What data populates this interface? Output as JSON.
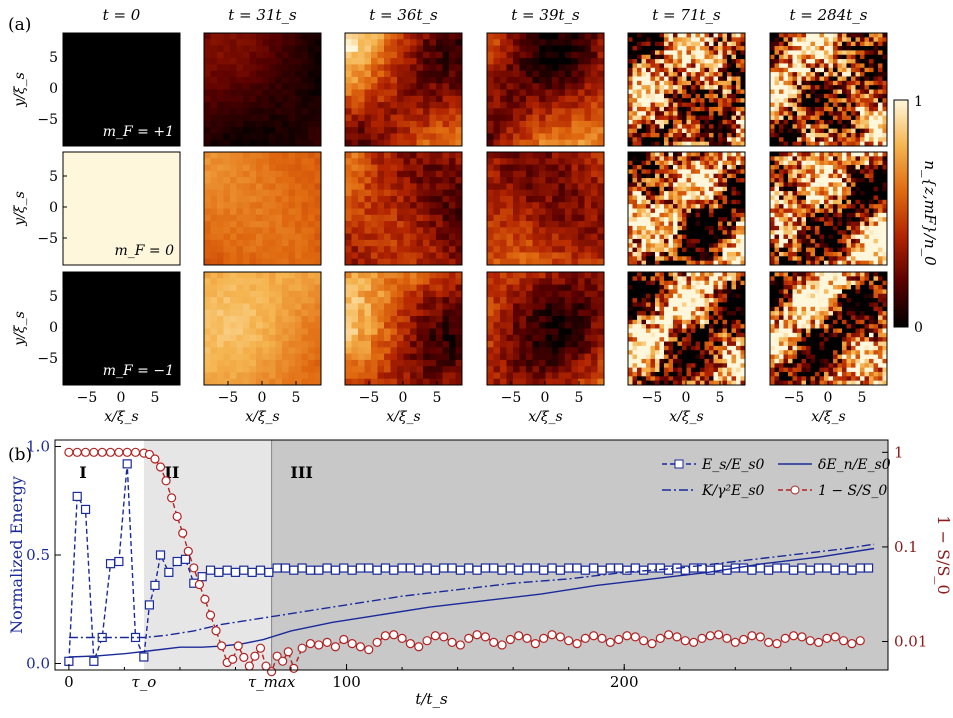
{
  "panel_a": {
    "label": "(a)",
    "column_titles": [
      "t = 0",
      "t = 31t_s",
      "t = 36t_s",
      "t = 39t_s",
      "t = 71t_s",
      "t = 284t_s"
    ],
    "row_labels": [
      "m_F = +1",
      "m_F = 0",
      "m_F = −1"
    ],
    "ylabel": "y/ξ_s",
    "xlabel": "x/ξ_s",
    "x_ticks": [
      "−5",
      "0",
      "5"
    ],
    "y_ticks": [
      "5",
      "0",
      "−5"
    ],
    "colorbar": {
      "label": "n_{z,mF}/n_0",
      "min_label": "0",
      "max_label": "1",
      "colors": [
        "#000000",
        "#5a0000",
        "#b32400",
        "#e06a10",
        "#f5b550",
        "#fff7dc"
      ]
    },
    "panels": [
      [
        0.0,
        0.12,
        0.55,
        0.5,
        0.5,
        0.5
      ],
      [
        1.0,
        0.6,
        0.45,
        0.5,
        0.5,
        0.5
      ],
      [
        0.0,
        0.72,
        0.58,
        0.5,
        0.5,
        0.5
      ]
    ]
  },
  "chart_data": {
    "type": "line",
    "label": "(b)",
    "xlabel": "t/t_s",
    "ylabel": "Normalized Energy",
    "ylabel_right": "1 − S/S_0",
    "xlim": [
      -5,
      295
    ],
    "ylim": [
      -0.03,
      1.03
    ],
    "x_ticks": [
      "0",
      "100",
      "200"
    ],
    "x_tick_values": [
      0,
      100,
      200
    ],
    "special_ticks": [
      {
        "label": "τ_o",
        "x": 27
      },
      {
        "label": "τ_max",
        "x": 73
      }
    ],
    "y_ticks": [
      "0.0",
      "0.5",
      "1.0"
    ],
    "y_tick_values": [
      0.0,
      0.5,
      1.0
    ],
    "y2_scale": "log",
    "y2_ticks": [
      "0.01",
      "0.1",
      "1"
    ],
    "y2_tick_values": [
      0.01,
      0.1,
      1
    ],
    "regions": [
      {
        "label": "I",
        "from": -5,
        "to": 27,
        "color": "#ffffff"
      },
      {
        "label": "II",
        "from": 27,
        "to": 73,
        "color": "#e6e6e6"
      },
      {
        "label": "III",
        "from": 73,
        "to": 295,
        "color": "#c8c8c8"
      }
    ],
    "series": [
      {
        "name": "E_s/E_s0",
        "axis": "left",
        "style": "dashed-square",
        "color": "#1a2a9a",
        "x": [
          0,
          3,
          6,
          9,
          12,
          15,
          18,
          21,
          24,
          27,
          29,
          31,
          33,
          36,
          39,
          42,
          45,
          48,
          51,
          54,
          57,
          60,
          63,
          66,
          69,
          72,
          75,
          78,
          81,
          84,
          87,
          90,
          93,
          96,
          99,
          102,
          105,
          108,
          111,
          114,
          117,
          120,
          123,
          126,
          129,
          132,
          135,
          138,
          141,
          144,
          147,
          150,
          153,
          156,
          159,
          162,
          165,
          168,
          171,
          174,
          177,
          180,
          183,
          186,
          189,
          192,
          195,
          198,
          201,
          204,
          207,
          210,
          213,
          216,
          219,
          222,
          225,
          228,
          231,
          234,
          237,
          240,
          243,
          246,
          249,
          252,
          255,
          258,
          261,
          264,
          267,
          270,
          273,
          276,
          279,
          282,
          285,
          288
        ],
        "y": [
          0.01,
          0.77,
          0.71,
          0.01,
          0.12,
          0.46,
          0.47,
          0.92,
          0.12,
          0.03,
          0.27,
          0.36,
          0.5,
          0.42,
          0.47,
          0.48,
          0.37,
          0.4,
          0.43,
          0.42,
          0.43,
          0.42,
          0.43,
          0.42,
          0.43,
          0.42,
          0.44,
          0.44,
          0.43,
          0.44,
          0.43,
          0.43,
          0.44,
          0.43,
          0.44,
          0.43,
          0.44,
          0.44,
          0.43,
          0.44,
          0.43,
          0.44,
          0.44,
          0.43,
          0.44,
          0.43,
          0.44,
          0.44,
          0.43,
          0.44,
          0.43,
          0.44,
          0.44,
          0.43,
          0.44,
          0.43,
          0.44,
          0.44,
          0.43,
          0.44,
          0.43,
          0.44,
          0.44,
          0.43,
          0.44,
          0.43,
          0.44,
          0.44,
          0.43,
          0.44,
          0.43,
          0.44,
          0.44,
          0.43,
          0.44,
          0.43,
          0.44,
          0.44,
          0.43,
          0.44,
          0.43,
          0.44,
          0.44,
          0.43,
          0.44,
          0.43,
          0.44,
          0.44,
          0.43,
          0.44,
          0.43,
          0.44,
          0.44,
          0.43,
          0.44,
          0.43,
          0.44,
          0.44
        ]
      },
      {
        "name": "K/γ²E_s0",
        "axis": "left",
        "style": "dashdot",
        "color": "#1a2a9a",
        "x": [
          0,
          27,
          35,
          45,
          55,
          65,
          75,
          90,
          105,
          120,
          140,
          160,
          180,
          200,
          220,
          240,
          260,
          280,
          290
        ],
        "y": [
          0.12,
          0.12,
          0.13,
          0.15,
          0.18,
          0.2,
          0.22,
          0.25,
          0.28,
          0.31,
          0.34,
          0.37,
          0.39,
          0.42,
          0.44,
          0.47,
          0.5,
          0.53,
          0.55
        ]
      },
      {
        "name": "δE_n/E_s0",
        "axis": "left",
        "style": "solid",
        "color": "#1a2a9a",
        "x": [
          0,
          10,
          20,
          30,
          40,
          48,
          55,
          62,
          70,
          80,
          95,
          110,
          130,
          150,
          170,
          190,
          210,
          230,
          250,
          270,
          290
        ],
        "y": [
          0.03,
          0.035,
          0.045,
          0.06,
          0.075,
          0.075,
          0.08,
          0.09,
          0.11,
          0.15,
          0.19,
          0.22,
          0.26,
          0.29,
          0.32,
          0.36,
          0.39,
          0.42,
          0.46,
          0.49,
          0.53
        ]
      },
      {
        "name": "1 − S/S_0",
        "axis": "right",
        "style": "dashed-circle",
        "color": "#b22222",
        "x": [
          0,
          3,
          6,
          9,
          12,
          15,
          18,
          21,
          24,
          27,
          29,
          31,
          33,
          35,
          37,
          39,
          41,
          43,
          45,
          47,
          49,
          51,
          53,
          55,
          57,
          59,
          61,
          63,
          65,
          67,
          69,
          71,
          73,
          75,
          77,
          79,
          81,
          84,
          87,
          90,
          93,
          96,
          99,
          102,
          105,
          108,
          111,
          114,
          117,
          120,
          123,
          126,
          129,
          132,
          135,
          138,
          141,
          144,
          147,
          150,
          153,
          156,
          159,
          162,
          165,
          168,
          171,
          174,
          177,
          180,
          183,
          186,
          189,
          192,
          195,
          198,
          201,
          204,
          207,
          210,
          213,
          216,
          219,
          222,
          225,
          228,
          231,
          234,
          237,
          240,
          243,
          246,
          249,
          252,
          255,
          258,
          261,
          264,
          267,
          270,
          273,
          276,
          279,
          282,
          285
        ],
        "y": [
          1,
          1,
          1,
          1,
          1,
          1,
          1,
          1,
          1,
          0.98,
          0.95,
          0.85,
          0.7,
          0.5,
          0.33,
          0.21,
          0.14,
          0.09,
          0.06,
          0.04,
          0.028,
          0.019,
          0.013,
          0.009,
          0.006,
          0.0065,
          0.009,
          0.0068,
          0.0055,
          0.007,
          0.0085,
          0.0055,
          0.0048,
          0.007,
          0.0062,
          0.0078,
          0.0052,
          0.0085,
          0.0095,
          0.0092,
          0.0098,
          0.0088,
          0.0105,
          0.0095,
          0.0088,
          0.0082,
          0.0098,
          0.0115,
          0.0118,
          0.0108,
          0.0095,
          0.0088,
          0.0102,
          0.0115,
          0.0112,
          0.0098,
          0.0092,
          0.0108,
          0.0118,
          0.0112,
          0.0098,
          0.0092,
          0.0105,
          0.0115,
          0.0108,
          0.0095,
          0.0108,
          0.0118,
          0.0112,
          0.0102,
          0.0095,
          0.0108,
          0.0115,
          0.0108,
          0.0098,
          0.0105,
          0.0115,
          0.0112,
          0.0102,
          0.0095,
          0.0108,
          0.0118,
          0.0112,
          0.0102,
          0.0098,
          0.0108,
          0.0115,
          0.0118,
          0.0108,
          0.0098,
          0.0105,
          0.0115,
          0.0112,
          0.0098,
          0.0095,
          0.0108,
          0.0115,
          0.0112,
          0.0102,
          0.0098,
          0.0108,
          0.0112,
          0.0102,
          0.0095,
          0.0102
        ]
      }
    ]
  }
}
